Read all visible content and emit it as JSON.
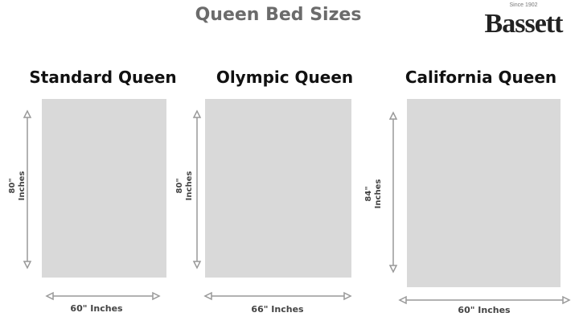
{
  "title": "Queen Bed Sizes",
  "logo": {
    "tagline": "Since 1902",
    "brand": "Bassett"
  },
  "beds": [
    {
      "name": "Standard Queen",
      "length": "80\"",
      "length_unit": "Inches",
      "width": "60\" Inches"
    },
    {
      "name": "Olympic Queen",
      "length": "80\"",
      "length_unit": "Inches",
      "width": "66\" Inches"
    },
    {
      "name": "California Queen",
      "length": "84\"",
      "length_unit": "Inches",
      "width": "60\" Inches"
    }
  ],
  "colors": {
    "bed": "#d9d9d9",
    "arrow": "#999999",
    "title": "#6b6b6b"
  }
}
